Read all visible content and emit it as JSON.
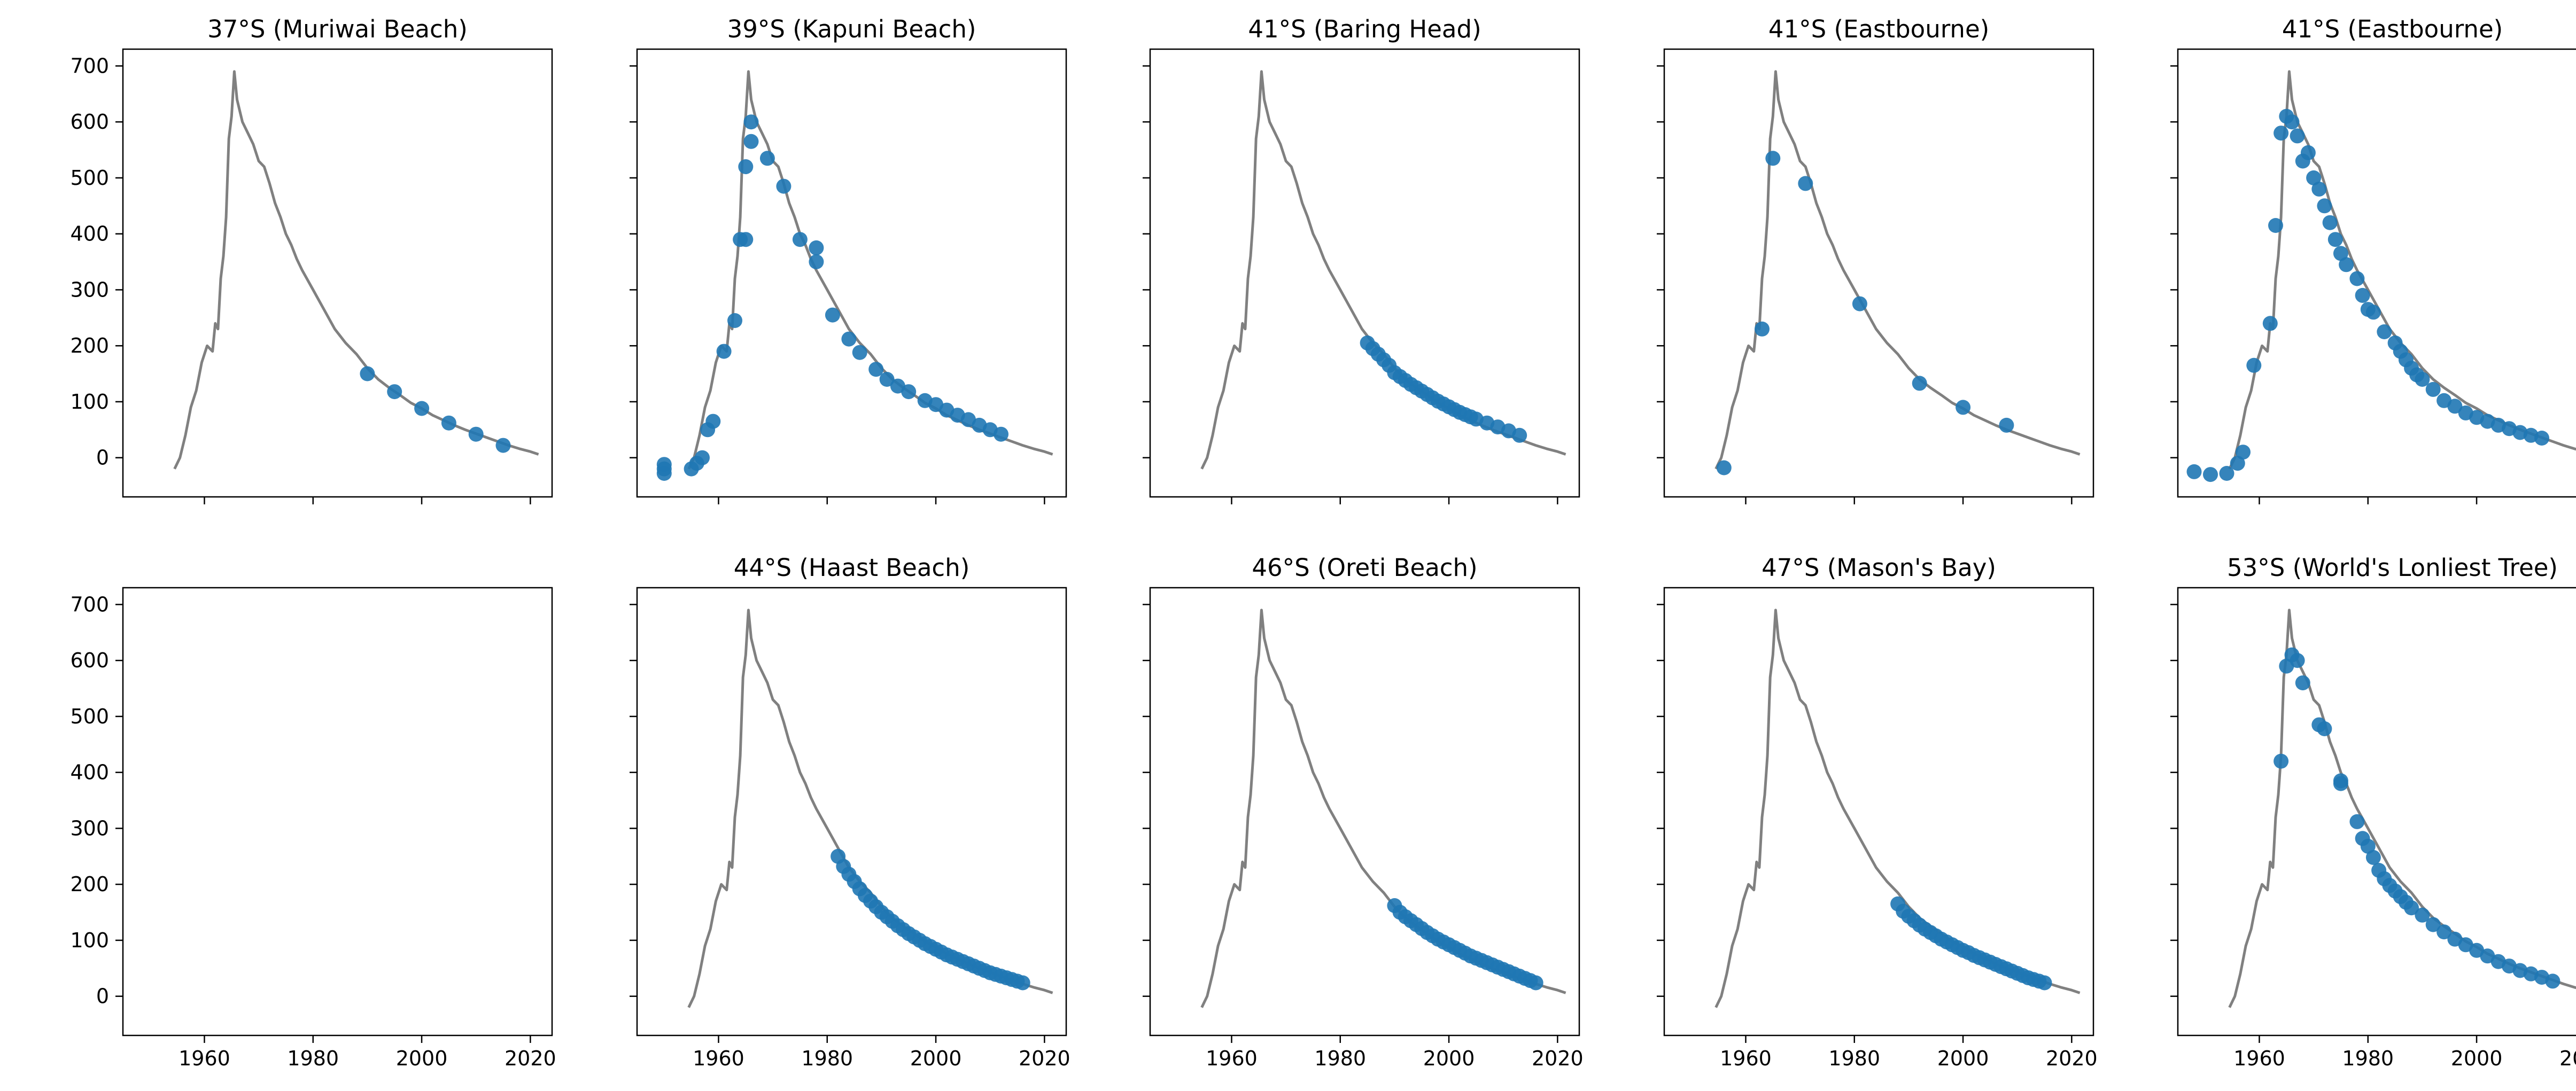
{
  "colors": {
    "curve": "#808080",
    "points": "#1f77b4",
    "axes": "#000000"
  },
  "chart_data": {
    "type": "scatter",
    "layout": "2x5 grid of subplots, shared x and y axes",
    "xlim": [
      1945,
      2024
    ],
    "ylim": [
      -70,
      730
    ],
    "x_ticks": [
      1960,
      1980,
      2000,
      2020
    ],
    "y_ticks": [
      0,
      100,
      200,
      300,
      400,
      500,
      600,
      700
    ],
    "grid": false,
    "background_curve": {
      "x": [
        1954.5,
        1955.5,
        1956.5,
        1957.5,
        1958.5,
        1959.5,
        1960.5,
        1961.5,
        1962.0,
        1962.5,
        1963.0,
        1963.5,
        1964.0,
        1964.5,
        1965.0,
        1965.5,
        1966.0,
        1967.0,
        1968.0,
        1969.0,
        1970.0,
        1971.0,
        1972.0,
        1973.0,
        1974.0,
        1975.0,
        1976.0,
        1977.0,
        1978.0,
        1980.0,
        1982.0,
        1984.0,
        1986.0,
        1988.0,
        1990.0,
        1992.0,
        1994.0,
        1996.0,
        1998.0,
        2000.0,
        2002.0,
        2004.0,
        2006.0,
        2008.0,
        2010.0,
        2012.0,
        2014.0,
        2016.0,
        2018.0,
        2020.0,
        2021.5
      ],
      "y": [
        -20,
        0,
        40,
        90,
        120,
        170,
        200,
        190,
        240,
        230,
        320,
        360,
        430,
        570,
        610,
        690,
        640,
        600,
        580,
        560,
        530,
        520,
        490,
        455,
        430,
        400,
        380,
        355,
        335,
        300,
        265,
        230,
        205,
        185,
        160,
        140,
        125,
        112,
        98,
        88,
        76,
        67,
        58,
        50,
        43,
        36,
        29,
        22,
        16,
        11,
        6
      ]
    },
    "panels": [
      {
        "title": "37°S (Muriwai Beach)",
        "x": [
          1990,
          1995,
          2000,
          2005,
          2010,
          2015
        ],
        "y": [
          150,
          118,
          88,
          62,
          42,
          22
        ]
      },
      {
        "title": "39°S (Kapuni Beach)",
        "x": [
          1950,
          1950,
          1950,
          1955,
          1956,
          1957,
          1958,
          1959,
          1961,
          1963,
          1964,
          1965,
          1965,
          1966,
          1966,
          1969,
          1972,
          1975,
          1978,
          1978,
          1981,
          1984,
          1986,
          1989,
          1991,
          1993,
          1995,
          1998,
          2000,
          2002,
          2004,
          2006,
          2008,
          2010,
          2012
        ],
        "y": [
          -28,
          -20,
          -12,
          -20,
          -10,
          0,
          50,
          65,
          190,
          245,
          390,
          390,
          520,
          565,
          600,
          535,
          485,
          390,
          375,
          350,
          255,
          212,
          188,
          158,
          140,
          128,
          118,
          102,
          95,
          85,
          76,
          68,
          58,
          50,
          42
        ]
      },
      {
        "title": "41°S (Baring Head)",
        "x": [
          1985,
          1986,
          1987,
          1988,
          1989,
          1990,
          1991,
          1992,
          1993,
          1994,
          1995,
          1996,
          1997,
          1998,
          1999,
          2000,
          2001,
          2002,
          2003,
          2004,
          2005,
          2007,
          2009,
          2011,
          2013
        ],
        "y": [
          205,
          195,
          185,
          175,
          165,
          152,
          145,
          138,
          131,
          125,
          119,
          113,
          107,
          101,
          96,
          91,
          86,
          81,
          77,
          73,
          69,
          62,
          55,
          48,
          40
        ]
      },
      {
        "title": "41°S (Eastbourne)",
        "x": [
          1956,
          1963,
          1965,
          1971,
          1981,
          1992,
          2000,
          2008
        ],
        "y": [
          -18,
          230,
          535,
          490,
          275,
          133,
          90,
          58
        ]
      },
      {
        "title": "41°S (Eastbourne)",
        "x": [
          1948,
          1951,
          1954,
          1956,
          1957,
          1959,
          1962,
          1963,
          1964,
          1965,
          1966,
          1967,
          1968,
          1969,
          1970,
          1971,
          1972,
          1973,
          1974,
          1975,
          1976,
          1978,
          1979,
          1980,
          1981,
          1983,
          1985,
          1986,
          1987,
          1988,
          1989,
          1990,
          1992,
          1994,
          1996,
          1998,
          2000,
          2002,
          2004,
          2006,
          2008,
          2010,
          2012
        ],
        "y": [
          -25,
          -30,
          -28,
          -10,
          10,
          165,
          240,
          415,
          580,
          610,
          600,
          575,
          530,
          545,
          500,
          480,
          450,
          420,
          390,
          365,
          345,
          320,
          290,
          265,
          260,
          225,
          205,
          190,
          175,
          160,
          148,
          140,
          122,
          102,
          92,
          80,
          72,
          65,
          58,
          52,
          45,
          40,
          35
        ]
      },
      {
        "title": "",
        "x": [],
        "y": []
      },
      {
        "title": "44°S (Haast Beach)",
        "x": [
          1982,
          1983,
          1984,
          1985,
          1986,
          1987,
          1988,
          1989,
          1990,
          1991,
          1992,
          1993,
          1994,
          1995,
          1996,
          1997,
          1998,
          1999,
          2000,
          2001,
          2002,
          2003,
          2004,
          2005,
          2006,
          2007,
          2008,
          2009,
          2010,
          2011,
          2012,
          2013,
          2014,
          2015,
          2016
        ],
        "y": [
          250,
          232,
          218,
          205,
          192,
          180,
          170,
          160,
          150,
          142,
          134,
          126,
          119,
          112,
          106,
          100,
          94,
          89,
          84,
          79,
          74,
          70,
          66,
          62,
          58,
          54,
          50,
          46,
          42,
          39,
          36,
          33,
          30,
          27,
          24
        ]
      },
      {
        "title": "46°S (Oreti Beach)",
        "x": [
          1990,
          1991,
          1992,
          1993,
          1994,
          1995,
          1996,
          1997,
          1998,
          1999,
          2000,
          2001,
          2002,
          2003,
          2004,
          2005,
          2006,
          2007,
          2008,
          2009,
          2010,
          2011,
          2012,
          2013,
          2014,
          2015,
          2016
        ],
        "y": [
          162,
          150,
          142,
          135,
          128,
          121,
          114,
          108,
          102,
          97,
          92,
          87,
          82,
          77,
          72,
          68,
          64,
          60,
          56,
          52,
          48,
          44,
          40,
          36,
          32,
          28,
          24
        ]
      },
      {
        "title": "47°S (Mason's Bay)",
        "x": [
          1988,
          1989,
          1990,
          1991,
          1992,
          1993,
          1994,
          1995,
          1996,
          1997,
          1998,
          1999,
          2000,
          2001,
          2002,
          2003,
          2004,
          2005,
          2006,
          2007,
          2008,
          2009,
          2010,
          2011,
          2012,
          2013,
          2014,
          2015
        ],
        "y": [
          165,
          152,
          143,
          135,
          127,
          120,
          114,
          108,
          102,
          97,
          92,
          87,
          82,
          78,
          73,
          69,
          65,
          61,
          57,
          53,
          49,
          45,
          41,
          37,
          33,
          30,
          27,
          24
        ]
      },
      {
        "title": "53°S (World's Lonliest Tree)",
        "x": [
          1964,
          1965,
          1966,
          1967,
          1968,
          1971,
          1972,
          1975,
          1975,
          1978,
          1979,
          1980,
          1981,
          1982,
          1983,
          1984,
          1985,
          1986,
          1987,
          1988,
          1990,
          1992,
          1994,
          1996,
          1998,
          2000,
          2002,
          2004,
          2006,
          2008,
          2010,
          2012,
          2014
        ],
        "y": [
          420,
          590,
          610,
          600,
          560,
          485,
          478,
          385,
          380,
          312,
          282,
          268,
          248,
          225,
          210,
          198,
          188,
          178,
          168,
          158,
          145,
          128,
          115,
          102,
          92,
          82,
          72,
          62,
          54,
          46,
          40,
          34,
          27
        ]
      }
    ]
  }
}
